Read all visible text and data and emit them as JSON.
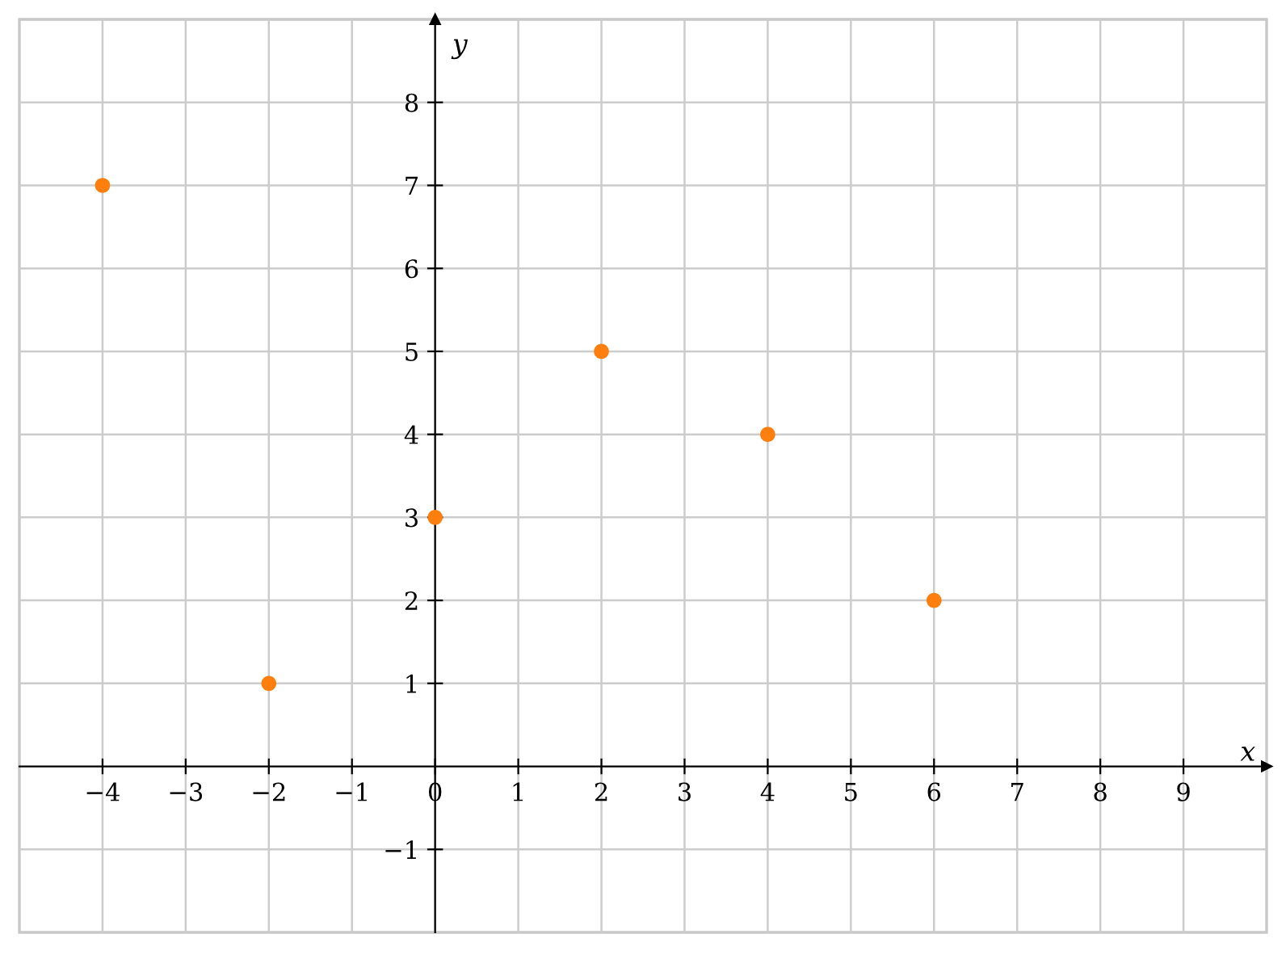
{
  "chart_data": {
    "type": "scatter",
    "xlabel": "x",
    "ylabel": "y",
    "x": [
      -4,
      -2,
      0,
      2,
      4,
      6
    ],
    "series": [
      {
        "color": "#ff7f0e",
        "values": [
          7,
          1,
          3,
          5,
          4,
          2
        ]
      }
    ],
    "xlim": [
      -5,
      10
    ],
    "ylim": [
      -2,
      9
    ],
    "xticks": [
      {
        "value": -4,
        "label": "−4"
      },
      {
        "value": -3,
        "label": "−3"
      },
      {
        "value": -2,
        "label": "−2"
      },
      {
        "value": -1,
        "label": "−1"
      },
      0,
      1,
      2,
      3,
      4,
      5,
      6,
      7,
      8,
      9
    ],
    "yticks": [
      {
        "value": -1,
        "label": "−1"
      },
      1,
      2,
      3,
      4,
      5,
      6,
      7,
      8
    ],
    "grid": true,
    "marker": "circle",
    "legend": false
  }
}
